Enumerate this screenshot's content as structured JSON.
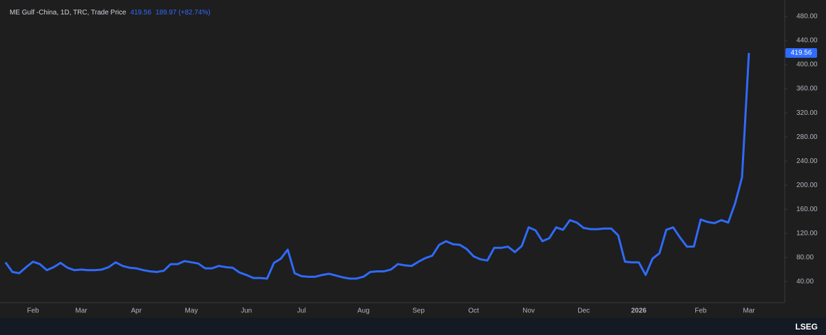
{
  "chart_data": {
    "type": "line",
    "title": "ME Gulf -China, 1D, TRC, Trade Price",
    "last_price": "419.56",
    "change_label": "189.97 (+82.74%)",
    "brand": "LSEG",
    "color": "#2f6bff",
    "categories": [
      null,
      null,
      null,
      null,
      "Feb",
      null,
      null,
      null,
      null,
      null,
      null,
      "Mar",
      null,
      null,
      null,
      null,
      null,
      null,
      null,
      "Apr",
      null,
      null,
      null,
      null,
      null,
      null,
      null,
      "May",
      null,
      null,
      null,
      null,
      null,
      null,
      null,
      "Jun",
      null,
      null,
      null,
      null,
      null,
      null,
      null,
      "Jul",
      null,
      null,
      null,
      null,
      null,
      null,
      null,
      null,
      "Aug",
      null,
      null,
      null,
      null,
      null,
      null,
      null,
      "Sep",
      null,
      null,
      null,
      null,
      null,
      null,
      null,
      "Oct",
      null,
      null,
      null,
      null,
      null,
      null,
      null,
      "Nov",
      null,
      null,
      null,
      null,
      null,
      null,
      null,
      "Dec",
      null,
      null,
      null,
      null,
      null,
      null,
      null,
      "2026",
      null,
      null,
      null,
      null,
      null,
      null,
      null,
      null,
      "Feb",
      null,
      null,
      null,
      null,
      null,
      null,
      "Mar"
    ],
    "values": [
      72,
      56,
      54,
      64,
      73,
      69,
      59,
      64,
      71,
      63,
      59,
      60,
      59,
      59,
      60,
      64,
      72,
      66,
      63,
      62,
      59,
      57,
      56,
      58,
      69,
      69,
      74,
      72,
      70,
      62,
      62,
      66,
      64,
      63,
      55,
      51,
      46,
      46,
      45,
      71,
      78,
      93,
      54,
      49,
      48,
      48,
      51,
      53,
      50,
      47,
      45,
      45,
      48,
      56,
      57,
      57,
      60,
      69,
      67,
      66,
      73,
      79,
      83,
      101,
      107,
      102,
      101,
      94,
      82,
      77,
      75,
      96,
      96,
      98,
      89,
      99,
      130,
      125,
      107,
      112,
      130,
      126,
      142,
      138,
      129,
      127,
      127,
      128,
      128,
      117,
      73,
      72,
      72,
      51,
      78,
      87,
      126,
      130,
      113,
      98,
      98,
      143,
      139,
      137,
      142,
      138,
      170,
      213,
      419.56
    ],
    "ylim": [
      5,
      496
    ],
    "yticks": [
      {
        "value": 40,
        "label": "40.00"
      },
      {
        "value": 80,
        "label": "80.00"
      },
      {
        "value": 120,
        "label": "120.00"
      },
      {
        "value": 160,
        "label": "160.00"
      },
      {
        "value": 200,
        "label": "200.00"
      },
      {
        "value": 240,
        "label": "240.00"
      },
      {
        "value": 280,
        "label": "280.00"
      },
      {
        "value": 320,
        "label": "320.00"
      },
      {
        "value": 360,
        "label": "360.00"
      },
      {
        "value": 400,
        "label": "400.00"
      },
      {
        "value": 440,
        "label": "440.00"
      },
      {
        "value": 480,
        "label": "480.00"
      }
    ]
  }
}
